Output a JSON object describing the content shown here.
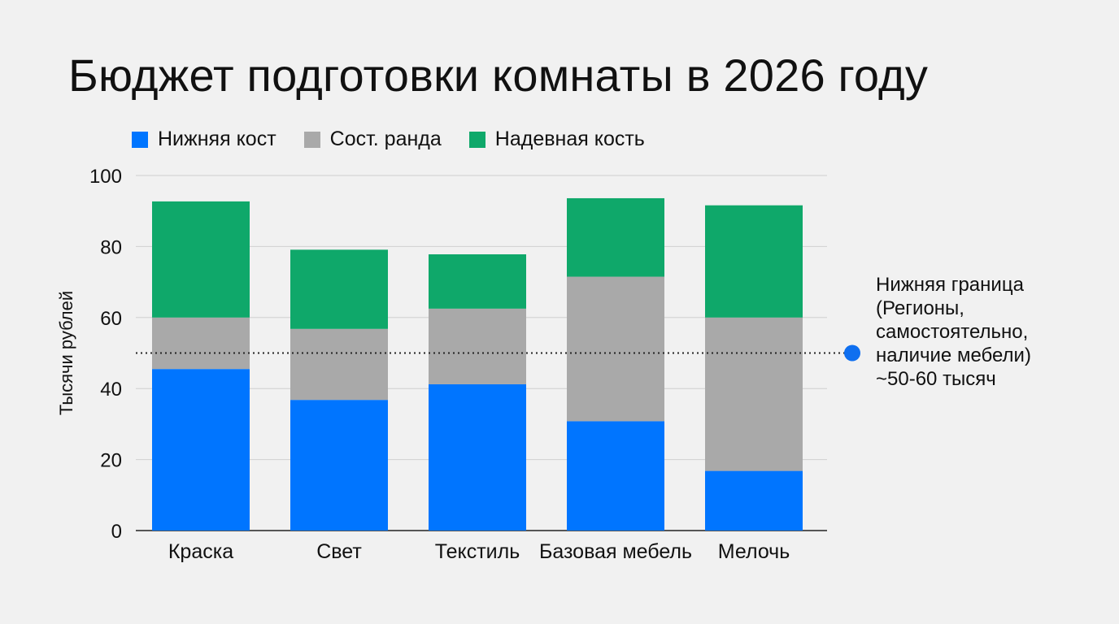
{
  "chart_data": {
    "type": "bar",
    "stacked": true,
    "title": "Бюджет подготовки комнаты в 2026 году",
    "ylabel": "Тысячи рублей",
    "xlabel": "",
    "ylim": [
      0,
      100
    ],
    "yticks": [
      0,
      20,
      40,
      60,
      80,
      100
    ],
    "grid": true,
    "legend_position": "top-left",
    "categories": [
      "Краска",
      "Свет",
      "Текстиль",
      "Базовая мебель",
      "Мелочь"
    ],
    "series": [
      {
        "name": "Нижняя кост",
        "color": "#0075ff",
        "values": [
          45.5,
          36.8,
          41.2,
          30.8,
          16.8
        ]
      },
      {
        "name": "Сост. ранда",
        "color": "#a9a9a9",
        "values": [
          14.5,
          20.0,
          21.3,
          40.7,
          43.2
        ]
      },
      {
        "name": "Надевная кость",
        "color": "#0fa86a",
        "values": [
          32.7,
          22.3,
          15.3,
          22.1,
          31.6
        ]
      }
    ],
    "reference_line": {
      "value": 50,
      "style": "dotted",
      "label": "Нижняя граница\n(Регионы,\nсамостоятельно,\nналичие мебели)\n~50-60 тысяч",
      "marker_color": "#0f6ff0"
    }
  }
}
